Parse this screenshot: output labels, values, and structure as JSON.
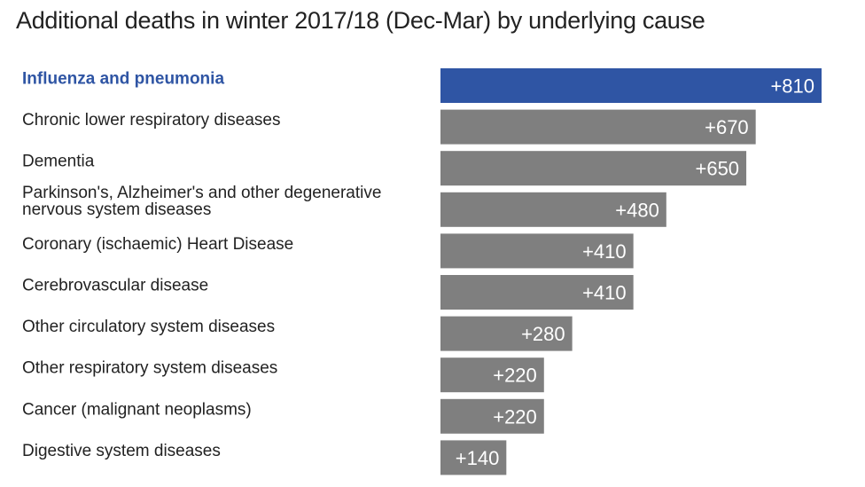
{
  "chart_data": {
    "type": "bar",
    "orientation": "horizontal",
    "title": "Additional deaths in winter 2017/18 (Dec-Mar) by underlying cause",
    "categories": [
      [
        "Influenza and pneumonia"
      ],
      [
        "Chronic lower respiratory diseases"
      ],
      [
        "Dementia"
      ],
      [
        "Parkinson's, Alzheimer's and other degenerative",
        "nervous system diseases"
      ],
      [
        "Coronary (ischaemic) Heart Disease"
      ],
      [
        "Cerebrovascular disease"
      ],
      [
        "Other circulatory system diseases"
      ],
      [
        "Other respiratory system diseases"
      ],
      [
        "Cancer (malignant neoplasms)"
      ],
      [
        "Digestive system diseases"
      ]
    ],
    "values": [
      810,
      670,
      650,
      480,
      410,
      410,
      280,
      220,
      220,
      140
    ],
    "value_labels": [
      "+810",
      "+670",
      "+650",
      "+480",
      "+410",
      "+410",
      "+280",
      "+220",
      "+220",
      "+140"
    ],
    "highlight_index": 0,
    "colors": {
      "highlight_bar": "#2f55a4",
      "bar": "#7f7f7f",
      "highlight_text": "#2f55a4",
      "text": "#222222",
      "value_text": "#ffffff"
    },
    "xlim": [
      0,
      810
    ],
    "grid": false,
    "legend": "none"
  }
}
